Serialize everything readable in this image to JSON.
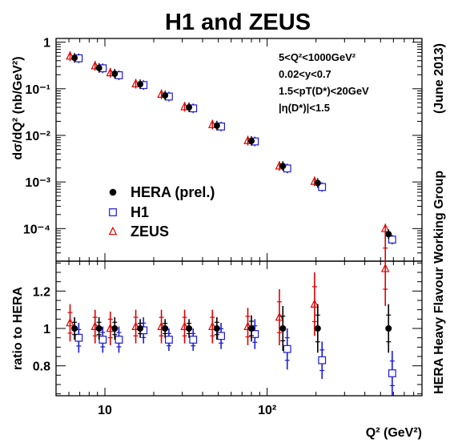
{
  "title": "H1 and ZEUS",
  "side_label": "HERA Heavy Flavour Working Group",
  "side_date": "(June 2013)",
  "colors": {
    "hera": "#000000",
    "h1": "#1a1ad9",
    "zeus": "#e00000"
  },
  "chart_data": [
    {
      "type": "scatter",
      "panel": "top",
      "ylabel": "dσ/dQ² (nb/GeV²)",
      "xscale": "log",
      "yscale": "log",
      "xlim": [
        5,
        900
      ],
      "ylim": [
        2e-05,
        1.2
      ],
      "yticks": [
        {
          "value": 1,
          "label": "1"
        },
        {
          "value": 0.1,
          "label": "10⁻¹"
        },
        {
          "value": 0.01,
          "label": "10⁻²"
        },
        {
          "value": 0.001,
          "label": "10⁻³"
        },
        {
          "value": 0.0001,
          "label": "10⁻⁴"
        }
      ],
      "cuts": [
        "5<Q²<1000GeV²",
        "0.02<y<0.7",
        "1.5<pT(D*)<20GeV",
        "|η(D*)|<1.5"
      ],
      "legend_position": "bottom-left",
      "series": [
        {
          "name": "HERA (prel.)",
          "marker": "filled-circle",
          "x": [
            6.5,
            9.2,
            11.5,
            16.5,
            23.5,
            33,
            49,
            80,
            125,
            205,
            560
          ],
          "y": [
            0.46,
            0.28,
            0.21,
            0.125,
            0.072,
            0.04,
            0.0162,
            0.0076,
            0.0022,
            0.00095,
            7.6e-05
          ]
        },
        {
          "name": "H1",
          "marker": "open-square",
          "x": [
            6.9,
            9.7,
            12.2,
            17.3,
            24.8,
            35,
            52,
            84,
            133,
            218,
            590
          ],
          "y": [
            0.45,
            0.275,
            0.195,
            0.12,
            0.068,
            0.038,
            0.0155,
            0.0074,
            0.00195,
            0.00078,
            5.8e-05
          ]
        },
        {
          "name": "ZEUS",
          "marker": "open-triangle",
          "x": [
            6.1,
            8.7,
            10.8,
            15.5,
            22.3,
            31,
            46,
            76,
            119,
            196,
            535
          ],
          "y": [
            0.5,
            0.31,
            0.22,
            0.128,
            0.076,
            0.041,
            0.017,
            0.0077,
            0.0022,
            0.00103,
            0.0001
          ]
        }
      ]
    },
    {
      "type": "scatter",
      "panel": "bottom",
      "ylabel": "ratio to HERA",
      "xlabel": "Q² (GeV²)",
      "xscale": "log",
      "xlim": [
        5,
        900
      ],
      "ylim": [
        0.64,
        1.36
      ],
      "yticks": [
        {
          "value": 1.2,
          "label": "1.2"
        },
        {
          "value": 1,
          "label": "1"
        },
        {
          "value": 0.8,
          "label": "0.8"
        }
      ],
      "xticks": [
        {
          "value": 10,
          "label": "10"
        },
        {
          "value": 100,
          "label": "10²"
        }
      ],
      "series": [
        {
          "name": "HERA (prel.)",
          "marker": "filled-circle",
          "x": [
            6.5,
            9.2,
            11.5,
            16.5,
            23.5,
            33,
            49,
            80,
            125,
            205,
            560
          ],
          "y": [
            1,
            1,
            1,
            1,
            1,
            1,
            1,
            1,
            1,
            1,
            1
          ],
          "err": [
            0.06,
            0.06,
            0.06,
            0.05,
            0.05,
            0.05,
            0.06,
            0.07,
            0.12,
            0.13,
            0.13
          ]
        },
        {
          "name": "H1",
          "marker": "open-square",
          "x": [
            6.9,
            9.7,
            12.2,
            17.3,
            24.8,
            35,
            52,
            84,
            133,
            218,
            590
          ],
          "y": [
            0.95,
            0.94,
            0.94,
            0.99,
            0.94,
            0.94,
            0.96,
            0.97,
            0.89,
            0.83,
            0.76
          ],
          "err": [
            0.08,
            0.07,
            0.07,
            0.07,
            0.06,
            0.06,
            0.07,
            0.08,
            0.11,
            0.1,
            0.12
          ]
        },
        {
          "name": "ZEUS",
          "marker": "open-triangle",
          "x": [
            6.1,
            8.7,
            10.8,
            15.5,
            22.3,
            31,
            46,
            76,
            119,
            196,
            535
          ],
          "y": [
            1.03,
            1.01,
            1.0,
            1.01,
            1.01,
            1.01,
            1.01,
            1.01,
            1.06,
            1.13,
            1.32
          ],
          "err": [
            0.1,
            0.09,
            0.09,
            0.09,
            0.09,
            0.09,
            0.09,
            0.1,
            0.15,
            0.17,
            0.2
          ]
        }
      ]
    }
  ]
}
